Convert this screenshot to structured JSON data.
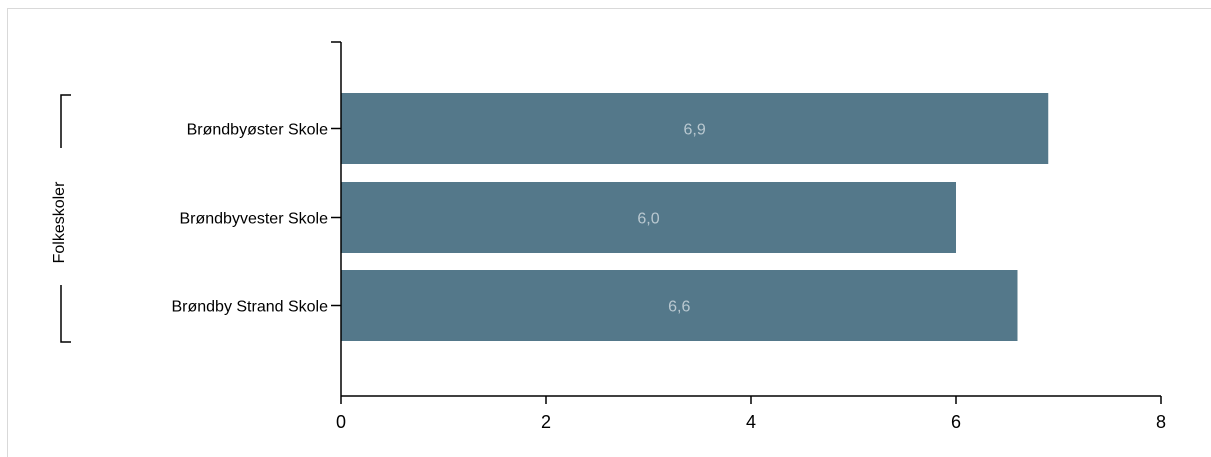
{
  "chart_data": {
    "type": "bar",
    "orientation": "horizontal",
    "group_label": "Folkeskoler",
    "categories": [
      "Brøndbyøster Skole",
      "Brøndbyvester Skole",
      "Brøndby Strand Skole"
    ],
    "values": [
      6.9,
      6.0,
      6.6
    ],
    "data_labels": [
      "6,9",
      "6,0",
      "6,6"
    ],
    "xlim": [
      0,
      8
    ],
    "xticks": [
      0,
      2,
      4,
      6,
      8
    ],
    "xtick_labels": [
      "0",
      "2",
      "4",
      "6",
      "8"
    ],
    "grid": false,
    "legend": "none",
    "bar_color": "#54788a",
    "label_color": "#b9c8d0"
  }
}
